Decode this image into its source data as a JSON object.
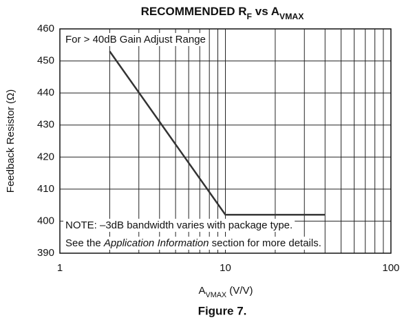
{
  "chart_data": {
    "type": "line",
    "title": [
      {
        "text": "RECOMMENDED R"
      },
      {
        "text": "F",
        "sub": true
      },
      {
        "text": " vs A"
      },
      {
        "text": "VMAX",
        "sub": true
      }
    ],
    "x_label": [
      {
        "text": "A"
      },
      {
        "text": "VMAX",
        "sub": true
      },
      {
        "text": " (V/V)"
      }
    ],
    "y_label": [
      {
        "text": "Feedback Resistor (Ω)"
      }
    ],
    "annotations": [
      [
        {
          "text": "For > 40dB Gain Adjust Range"
        }
      ],
      [
        {
          "text": "NOTE: –3dB bandwidth varies with package type."
        }
      ],
      [
        {
          "text": "See the "
        },
        {
          "text": "Application Information",
          "italic": true
        },
        {
          "text": " section for more details."
        }
      ]
    ],
    "caption": "Figure 7.",
    "x": [
      2,
      10,
      40
    ],
    "series": [
      {
        "values": [
          453,
          402,
          402
        ],
        "color": "#333333"
      }
    ],
    "xlim": [
      1,
      100
    ],
    "xticks": [
      1,
      10,
      100
    ],
    "xlog": true,
    "xgrid": [
      2,
      3,
      4,
      5,
      6,
      7,
      8,
      9,
      20,
      30,
      40,
      50,
      60,
      70,
      80,
      90
    ],
    "ylim": [
      390,
      460
    ],
    "yticks": [
      390,
      400,
      410,
      420,
      430,
      440,
      450,
      460
    ],
    "grid": true
  }
}
